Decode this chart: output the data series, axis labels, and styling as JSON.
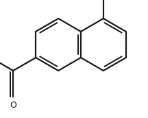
{
  "bg_color": "#ffffff",
  "line_color": "#1a1a1a",
  "line_width": 1.6,
  "fig_width": 2.16,
  "fig_height": 1.72,
  "dpi": 100,
  "scale": 1.0,
  "ox": 0.0,
  "oy": 0.0
}
